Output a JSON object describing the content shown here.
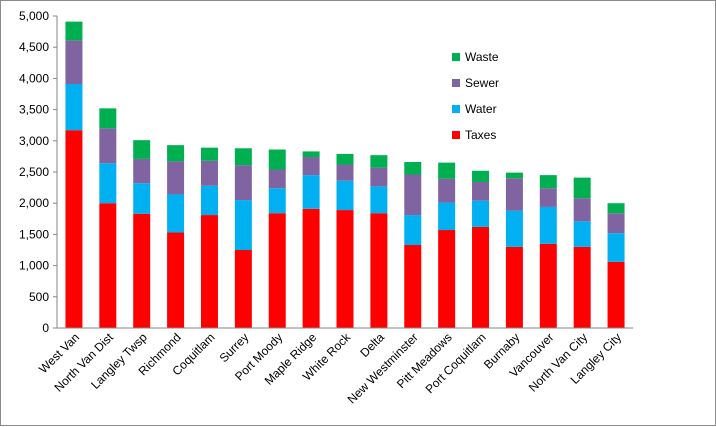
{
  "chart_data": {
    "type": "bar",
    "stacked": true,
    "title": "",
    "xlabel": "",
    "ylabel": "",
    "ylim": [
      0,
      5000
    ],
    "yticks": [
      0,
      500,
      1000,
      1500,
      2000,
      2500,
      3000,
      3500,
      4000,
      4500,
      5000
    ],
    "ytick_labels": [
      "0",
      "500",
      "1,000",
      "1,500",
      "2,000",
      "2,500",
      "3,000",
      "3,500",
      "4,000",
      "4,500",
      "5,000"
    ],
    "grid": false,
    "legend_position": "top-right",
    "categories": [
      "West Van",
      "North Van Dist",
      "Langley Twsp",
      "Richmond",
      "Coquitlam",
      "Surrey",
      "Port Moody",
      "Maple Ridge",
      "White Rock",
      "Delta",
      "New Westminster",
      "Pitt Meadows",
      "Port Coquitlam",
      "Burnaby",
      "Vancouver",
      "North Van City",
      "Langley City"
    ],
    "series": [
      {
        "name": "Taxes",
        "color": "#ff0000",
        "values": [
          3170,
          2000,
          1830,
          1530,
          1810,
          1250,
          1840,
          1910,
          1890,
          1840,
          1330,
          1570,
          1620,
          1300,
          1350,
          1300,
          1060
        ]
      },
      {
        "name": "Water",
        "color": "#00b0f0",
        "values": [
          740,
          640,
          490,
          610,
          470,
          800,
          400,
          540,
          470,
          430,
          480,
          440,
          420,
          580,
          590,
          410,
          460
        ]
      },
      {
        "name": "Sewer",
        "color": "#8064a2",
        "values": [
          700,
          560,
          390,
          530,
          400,
          560,
          300,
          290,
          260,
          300,
          650,
          380,
          300,
          520,
          300,
          370,
          320
        ]
      },
      {
        "name": "Waste",
        "color": "#00b050",
        "values": [
          300,
          320,
          300,
          260,
          210,
          270,
          320,
          90,
          170,
          200,
          200,
          260,
          180,
          90,
          210,
          330,
          160
        ]
      }
    ]
  },
  "legend_order": [
    "Waste",
    "Sewer",
    "Water",
    "Taxes"
  ]
}
